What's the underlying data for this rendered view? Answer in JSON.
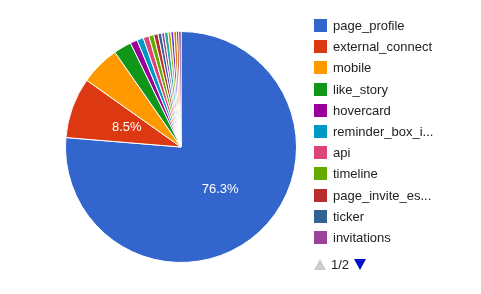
{
  "chart_data": {
    "type": "pie",
    "categories": [
      "page_profile",
      "external_connect",
      "mobile",
      "like_story",
      "hovercard",
      "reminder_box_i...",
      "api",
      "timeline",
      "page_invite_es...",
      "ticker",
      "invitations",
      null,
      null,
      null,
      null,
      null,
      null
    ],
    "values": [
      76.3,
      8.5,
      5.5,
      2.5,
      1.0,
      0.9,
      0.8,
      0.7,
      0.6,
      0.5,
      0.4,
      0.5,
      0.4,
      0.4,
      0.4,
      0.3,
      0.3
    ],
    "value_labels": [
      "76.3%",
      "8.5%",
      null,
      null,
      null,
      null,
      null,
      null,
      null,
      null,
      null,
      null,
      null,
      null,
      null,
      null,
      null
    ],
    "colors": [
      "#3366cc",
      "#dc3912",
      "#ff9900",
      "#109618",
      "#990099",
      "#0099c6",
      "#dd4477",
      "#66aa00",
      "#b82e2e",
      "#316395",
      "#994499",
      "#22aa99",
      "#aaaa11",
      "#6633cc",
      "#e67300",
      "#8b0707",
      "#651067"
    ],
    "data_labels": true,
    "legend": "right",
    "annotations": [
      "1/2"
    ]
  }
}
